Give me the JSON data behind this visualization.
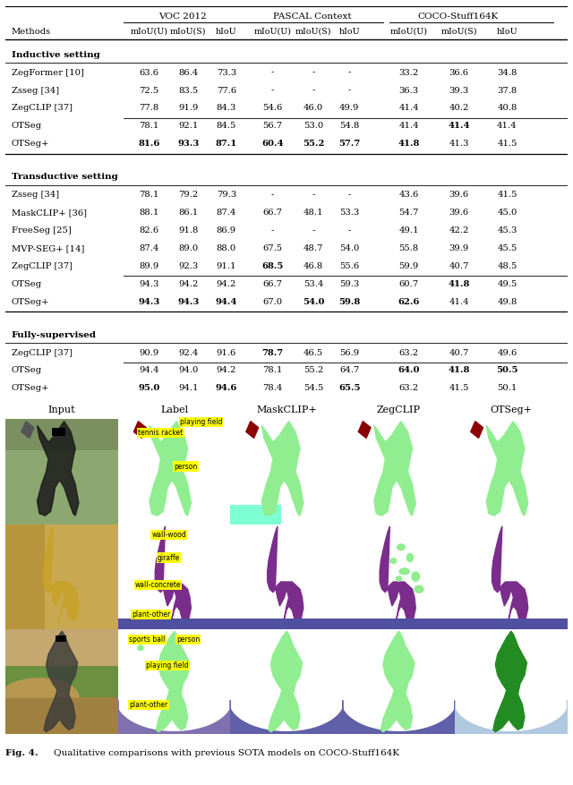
{
  "sections": [
    {
      "heading": "Inductive setting",
      "rows": [
        {
          "method": "ZegFormer [10]",
          "data": [
            "63.6",
            "86.4",
            "73.3",
            "-",
            "-",
            "-",
            "33.2",
            "36.6",
            "34.8"
          ],
          "bold": []
        },
        {
          "method": "Zsseg [34]",
          "data": [
            "72.5",
            "83.5",
            "77.6",
            "-",
            "-",
            "-",
            "36.3",
            "39.3",
            "37.8"
          ],
          "bold": []
        },
        {
          "method": "ZegCLIP [37]",
          "data": [
            "77.8",
            "91.9",
            "84.3",
            "54.6",
            "46.0",
            "49.9",
            "41.4",
            "40.2",
            "40.8"
          ],
          "bold": []
        }
      ],
      "ours": [
        {
          "method": "OTSeg",
          "data": [
            "78.1",
            "92.1",
            "84.5",
            "56.7",
            "53.0",
            "54.8",
            "41.4",
            "41.4",
            "41.4"
          ],
          "bold": [
            7
          ]
        },
        {
          "method": "OTSeg+",
          "data": [
            "81.6",
            "93.3",
            "87.1",
            "60.4",
            "55.2",
            "57.7",
            "41.8",
            "41.3",
            "41.5"
          ],
          "bold": [
            0,
            1,
            2,
            3,
            4,
            5,
            6
          ]
        }
      ]
    },
    {
      "heading": "Transductive setting",
      "rows": [
        {
          "method": "Zsseg [34]",
          "data": [
            "78.1",
            "79.2",
            "79.3",
            "-",
            "-",
            "-",
            "43.6",
            "39.6",
            "41.5"
          ],
          "bold": []
        },
        {
          "method": "MaskCLIP+ [36]",
          "data": [
            "88.1",
            "86.1",
            "87.4",
            "66.7",
            "48.1",
            "53.3",
            "54.7",
            "39.6",
            "45.0"
          ],
          "bold": []
        },
        {
          "method": "FreeSeg [25]",
          "data": [
            "82.6",
            "91.8",
            "86.9",
            "-",
            "-",
            "-",
            "49.1",
            "42.2",
            "45.3"
          ],
          "bold": []
        },
        {
          "method": "MVP-SEG+ [14]",
          "data": [
            "87.4",
            "89.0",
            "88.0",
            "67.5",
            "48.7",
            "54.0",
            "55.8",
            "39.9",
            "45.5"
          ],
          "bold": []
        },
        {
          "method": "ZegCLIP [37]",
          "data": [
            "89.9",
            "92.3",
            "91.1",
            "68.5",
            "46.8",
            "55.6",
            "59.9",
            "40.7",
            "48.5"
          ],
          "bold": [
            3
          ]
        }
      ],
      "ours": [
        {
          "method": "OTSeg",
          "data": [
            "94.3",
            "94.2",
            "94.2",
            "66.7",
            "53.4",
            "59.3",
            "60.7",
            "41.8",
            "49.5"
          ],
          "bold": [
            7
          ]
        },
        {
          "method": "OTSeg+",
          "data": [
            "94.3",
            "94.3",
            "94.4",
            "67.0",
            "54.0",
            "59.8",
            "62.6",
            "41.4",
            "49.8"
          ],
          "bold": [
            0,
            1,
            2,
            4,
            5,
            6
          ]
        }
      ]
    },
    {
      "heading": "Fully-supervised",
      "rows": [
        {
          "method": "ZegCLIP [37]",
          "data": [
            "90.9",
            "92.4",
            "91.6",
            "78.7",
            "46.5",
            "56.9",
            "63.2",
            "40.7",
            "49.6"
          ],
          "bold": [
            3
          ]
        }
      ],
      "ours": [
        {
          "method": "OTSeg",
          "data": [
            "94.4",
            "94.0",
            "94.2",
            "78.1",
            "55.2",
            "64.7",
            "64.0",
            "41.8",
            "50.5"
          ],
          "bold": [
            6,
            7,
            8
          ]
        },
        {
          "method": "OTSeg+",
          "data": [
            "95.0",
            "94.1",
            "94.6",
            "78.4",
            "54.5",
            "65.5",
            "63.2",
            "41.5",
            "50.1"
          ],
          "bold": [
            0,
            2,
            5
          ]
        }
      ]
    }
  ],
  "col_headers": [
    "Input",
    "Label",
    "MaskCLIP+",
    "ZegCLIP",
    "OTSeg+"
  ],
  "caption": "Fig. 4.   Qualitative comparisons with previous SOTA models on COCO-Stuff164K"
}
